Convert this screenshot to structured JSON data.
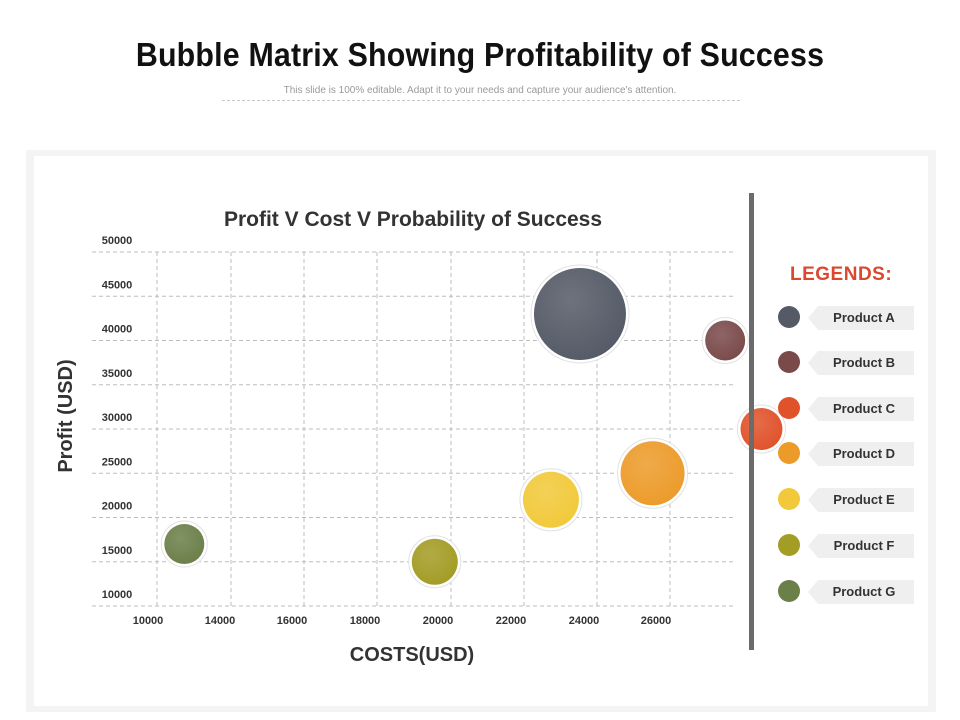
{
  "slide": {
    "title": "Bubble Matrix Showing Profitability of Success",
    "subtitle": "This slide is 100% editable. Adapt it to your needs and capture your audience's attention."
  },
  "legend": {
    "title": "LEGENDS:",
    "items": [
      {
        "label": "Product A",
        "color": "#545a66"
      },
      {
        "label": "Product B",
        "color": "#7a4a4a"
      },
      {
        "label": "Product C",
        "color": "#e0522a"
      },
      {
        "label": "Product D",
        "color": "#ec9b2a"
      },
      {
        "label": "Product E",
        "color": "#f1c93a"
      },
      {
        "label": "Product F",
        "color": "#a39c25"
      },
      {
        "label": "Product G",
        "color": "#6b7f48"
      }
    ]
  },
  "chart_data": {
    "type": "bubble",
    "title": "Profit V Cost V Probability of Success",
    "xlabel": "COSTS(USD)",
    "ylabel": "Profit (USD)",
    "x_ticks": [
      "10000",
      "14000",
      "16000",
      "18000",
      "20000",
      "22000",
      "24000",
      "26000"
    ],
    "y_ticks": [
      "50000",
      "45000",
      "40000",
      "35000",
      "30000",
      "25000",
      "20000",
      "15000",
      "10000"
    ],
    "ylim": [
      10000,
      50000
    ],
    "grid": true,
    "series": [
      {
        "name": "Product A",
        "color": "#545a66",
        "x": 21900,
        "y": 43000,
        "size": 46
      },
      {
        "name": "Product B",
        "color": "#7a4a4a",
        "x": 25900,
        "y": 40000,
        "size": 20
      },
      {
        "name": "Product C",
        "color": "#e0522a",
        "x": 26900,
        "y": 30000,
        "size": 21
      },
      {
        "name": "Product D",
        "color": "#ec9b2a",
        "x": 23900,
        "y": 25000,
        "size": 32
      },
      {
        "name": "Product E",
        "color": "#f1c93a",
        "x": 21100,
        "y": 22000,
        "size": 28
      },
      {
        "name": "Product F",
        "color": "#a39c25",
        "x": 17900,
        "y": 15000,
        "size": 23
      },
      {
        "name": "Product G",
        "color": "#6b7f48",
        "x": 11000,
        "y": 17000,
        "size": 20
      }
    ]
  }
}
